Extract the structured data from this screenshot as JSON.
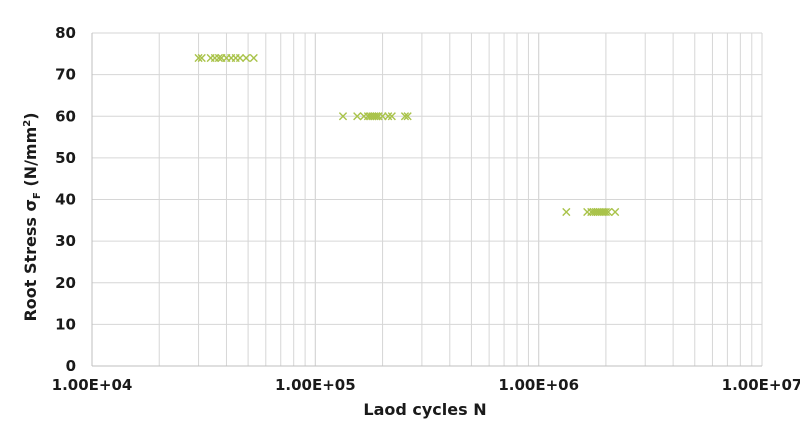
{
  "chart_data": {
    "type": "scatter",
    "title": "",
    "xlabel": "Laod cycles N",
    "ylabel_main": "Root Stress σ",
    "ylabel_sub": "F",
    "ylabel_unit_pre": " (N/mm",
    "ylabel_unit_sup": "2",
    "ylabel_unit_post": ")",
    "x_scale": "log",
    "xlim": [
      10000,
      10000000
    ],
    "ylim": [
      0,
      80
    ],
    "x_ticks": [
      10000,
      100000,
      1000000,
      10000000
    ],
    "x_tick_labels": [
      "1.00E+04",
      "1.00E+05",
      "1.00E+06",
      "1.00E+07"
    ],
    "y_ticks": [
      0,
      10,
      20,
      30,
      40,
      50,
      60,
      70,
      80
    ],
    "y_tick_labels": [
      "0",
      "10",
      "20",
      "30",
      "40",
      "50",
      "60",
      "70",
      "80"
    ],
    "grid": true,
    "marker": "x",
    "marker_color": "#a9c34a",
    "legend": "none",
    "series": [
      {
        "x": [
          30000,
          31000,
          34000,
          35500,
          37000,
          38000,
          40000,
          42000,
          44000,
          46000,
          49000,
          53000
        ],
        "y": [
          74,
          74,
          74,
          74,
          74,
          74,
          74,
          74,
          74,
          74,
          74,
          74
        ]
      },
      {
        "x": [
          133000,
          154000,
          165000,
          172000,
          176000,
          180000,
          184000,
          188000,
          192000,
          200000,
          212000,
          220000,
          252000,
          259000
        ],
        "y": [
          60,
          60,
          60,
          60,
          60,
          60,
          60,
          60,
          60,
          60,
          60,
          60,
          60,
          60
        ]
      },
      {
        "x": [
          1330000,
          1650000,
          1720000,
          1760000,
          1800000,
          1840000,
          1880000,
          1920000,
          1960000,
          2000000,
          2050000,
          2200000
        ],
        "y": [
          37,
          37,
          37,
          37,
          37,
          37,
          37,
          37,
          37,
          37,
          37,
          37
        ]
      }
    ]
  }
}
